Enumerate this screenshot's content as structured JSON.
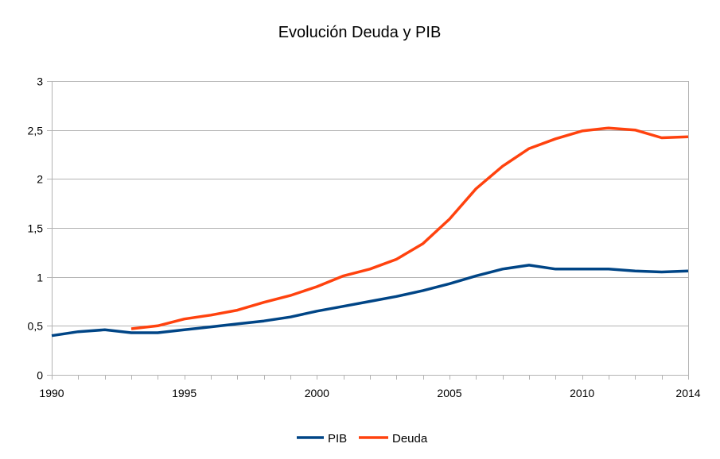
{
  "chart_data": {
    "type": "line",
    "title": "Evolución Deuda y PIB",
    "xlabel": "",
    "ylabel": "",
    "x": [
      1990,
      1991,
      1992,
      1993,
      1994,
      1995,
      1996,
      1997,
      1998,
      1999,
      2000,
      2001,
      2002,
      2003,
      2004,
      2005,
      2006,
      2007,
      2008,
      2009,
      2010,
      2011,
      2012,
      2013,
      2014
    ],
    "xlim": [
      1990,
      2014
    ],
    "ylim": [
      0,
      3
    ],
    "x_tick_labels": [
      "1990",
      "1995",
      "2000",
      "2005",
      "2010",
      "2014"
    ],
    "x_tick_values": [
      1990,
      1995,
      2000,
      2005,
      2010,
      2014
    ],
    "y_tick_values": [
      0,
      0.5,
      1,
      1.5,
      2,
      2.5,
      3
    ],
    "y_tick_labels": [
      "0",
      "0,5",
      "1",
      "1,5",
      "2",
      "2,5",
      "3"
    ],
    "grid": true,
    "legend_position": "bottom-center",
    "series": [
      {
        "name": "PIB",
        "color": "#004586",
        "values": [
          0.4,
          0.44,
          0.46,
          0.43,
          0.43,
          0.46,
          0.49,
          0.52,
          0.55,
          0.59,
          0.65,
          0.7,
          0.75,
          0.8,
          0.86,
          0.93,
          1.01,
          1.08,
          1.12,
          1.08,
          1.08,
          1.08,
          1.06,
          1.05,
          1.06
        ]
      },
      {
        "name": "Deuda",
        "color": "#ff420e",
        "values": [
          null,
          null,
          null,
          0.47,
          0.5,
          0.57,
          0.61,
          0.66,
          0.74,
          0.81,
          0.9,
          1.01,
          1.08,
          1.18,
          1.34,
          1.59,
          1.9,
          2.13,
          2.31,
          2.41,
          2.49,
          2.52,
          2.5,
          2.42,
          2.43
        ]
      }
    ]
  }
}
